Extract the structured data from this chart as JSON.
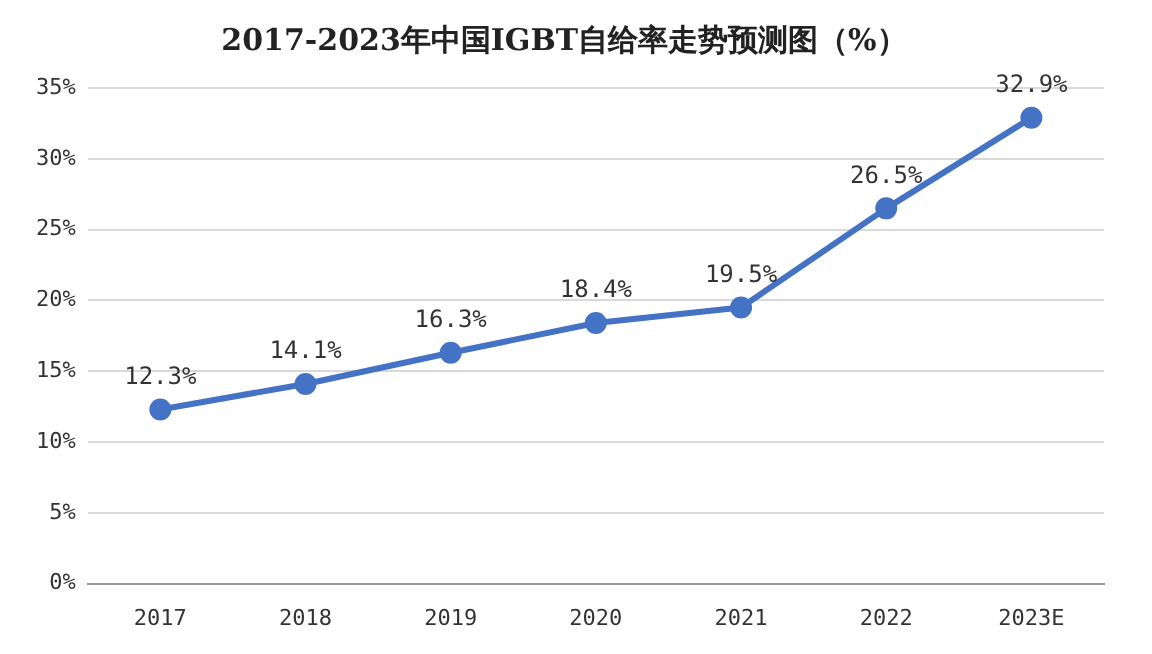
{
  "chart_data": {
    "type": "line",
    "title": "2017-2023年中国IGBT自给率走势预测图（%）",
    "categories": [
      "2017",
      "2018",
      "2019",
      "2020",
      "2021",
      "2022",
      "2023E"
    ],
    "series": [
      {
        "color": "#4472c4",
        "values": [
          12.3,
          14.1,
          16.3,
          18.4,
          19.5,
          26.5,
          32.9
        ],
        "value_labels": [
          "12.3%",
          "14.1%",
          "16.3%",
          "18.4%",
          "19.5%",
          "26.5%",
          "32.9%"
        ]
      }
    ],
    "ylim": [
      0,
      35
    ],
    "yticks": [
      {
        "value": 0,
        "label": "0%"
      },
      {
        "value": 5,
        "label": "5%"
      },
      {
        "value": 10,
        "label": "10%"
      },
      {
        "value": 15,
        "label": "15%"
      },
      {
        "value": 20,
        "label": "20%"
      },
      {
        "value": 25,
        "label": "25%"
      },
      {
        "value": 30,
        "label": "30%"
      },
      {
        "value": 35,
        "label": "35%"
      }
    ],
    "grid": "y",
    "marker": "circle",
    "line_style": "solid",
    "legend": false
  }
}
